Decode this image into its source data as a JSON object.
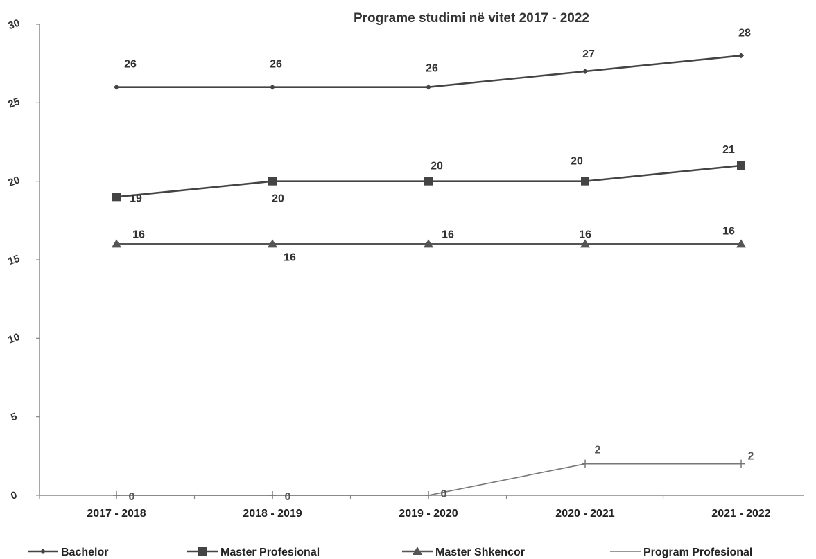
{
  "chart_data": {
    "type": "line",
    "title": "Programe studimi në vitet 2017 - 2022",
    "xlabel": "",
    "ylabel": "",
    "categories": [
      "2017 - 2018",
      "2018 - 2019",
      "2019 - 2020",
      "2020 - 2021",
      "2021 - 2022"
    ],
    "ylim": [
      0,
      30
    ],
    "yticks": [
      "0",
      "5",
      "10",
      "15",
      "20",
      "25",
      "30"
    ],
    "legend_position": "bottom",
    "grid": false,
    "series": [
      {
        "name": "Bachelor",
        "values": [
          26,
          26,
          26,
          27,
          28
        ],
        "marker": "diamond",
        "color": "#444444",
        "labels": [
          "26",
          "26",
          "26",
          "27",
          "28"
        ]
      },
      {
        "name": "Master Profesional",
        "values": [
          19,
          20,
          20,
          20,
          21
        ],
        "marker": "square",
        "color": "#444444",
        "labels": [
          "19",
          "20",
          "20",
          "20",
          "21"
        ]
      },
      {
        "name": "Master Shkencor",
        "values": [
          16,
          16,
          16,
          16,
          16
        ],
        "marker": "triangle",
        "color": "#555555",
        "labels": [
          "16",
          "16",
          "16",
          "16",
          "16"
        ]
      },
      {
        "name": "Program Profesional",
        "values": [
          0,
          0,
          0,
          2,
          2
        ],
        "marker": "plus",
        "color": "#777777",
        "labels": [
          "0",
          "0",
          "0",
          "2",
          "2"
        ]
      }
    ]
  }
}
